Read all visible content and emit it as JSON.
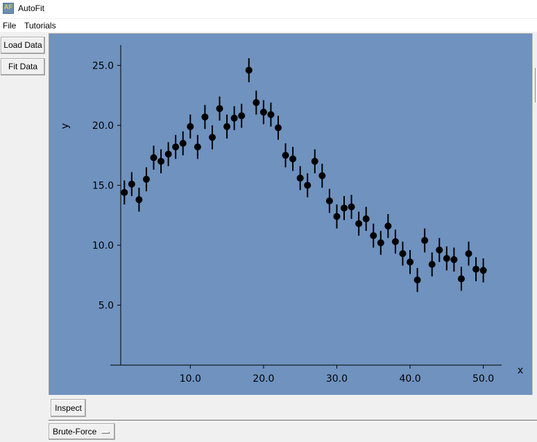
{
  "window": {
    "title": "AutoFit"
  },
  "menu": {
    "items": [
      "File",
      "Tutorials"
    ]
  },
  "buttons": {
    "load_data": "Load Data",
    "fit_data": "Fit Data",
    "inspect": "Inspect"
  },
  "dropdown": {
    "selected": "Brute-Force"
  },
  "colors": {
    "plot_background": "#6f92bf",
    "marker": "#000000"
  },
  "chart_data": {
    "type": "scatter",
    "xlabel": "x",
    "ylabel": "y",
    "xlim": [
      0.5,
      52.5
    ],
    "ylim": [
      0.0,
      26.7
    ],
    "xticks": [
      10.0,
      20.0,
      30.0,
      40.0,
      50.0
    ],
    "xtick_labels": [
      "10.0",
      "20.0",
      "30.0",
      "40.0",
      "50.0"
    ],
    "yticks": [
      5.0,
      10.0,
      15.0,
      20.0,
      25.0
    ],
    "ytick_labels": [
      "5.0",
      "10.0",
      "15.0",
      "20.0",
      "25.0"
    ],
    "grid": false,
    "x": [
      1,
      2,
      3,
      4,
      5,
      6,
      7,
      8,
      9,
      10,
      11,
      12,
      13,
      14,
      15,
      16,
      17,
      18,
      19,
      20,
      21,
      22,
      23,
      24,
      25,
      26,
      27,
      28,
      29,
      30,
      31,
      32,
      33,
      34,
      35,
      36,
      37,
      38,
      39,
      40,
      41,
      42,
      43,
      44,
      45,
      46,
      47,
      48,
      49,
      50
    ],
    "y": [
      14.4,
      15.1,
      13.8,
      15.5,
      17.3,
      17.0,
      17.6,
      18.2,
      18.5,
      19.9,
      18.2,
      20.7,
      19.0,
      21.4,
      19.9,
      20.6,
      20.8,
      24.6,
      21.9,
      21.1,
      20.9,
      19.8,
      17.5,
      17.2,
      15.6,
      15.0,
      17.0,
      15.8,
      13.7,
      12.4,
      13.1,
      13.2,
      11.8,
      12.2,
      10.8,
      10.2,
      11.6,
      10.3,
      9.3,
      8.6,
      7.1,
      10.4,
      8.4,
      9.6,
      8.9,
      8.8,
      7.2,
      9.3,
      8.0,
      7.9
    ],
    "yerr": 1.0
  }
}
